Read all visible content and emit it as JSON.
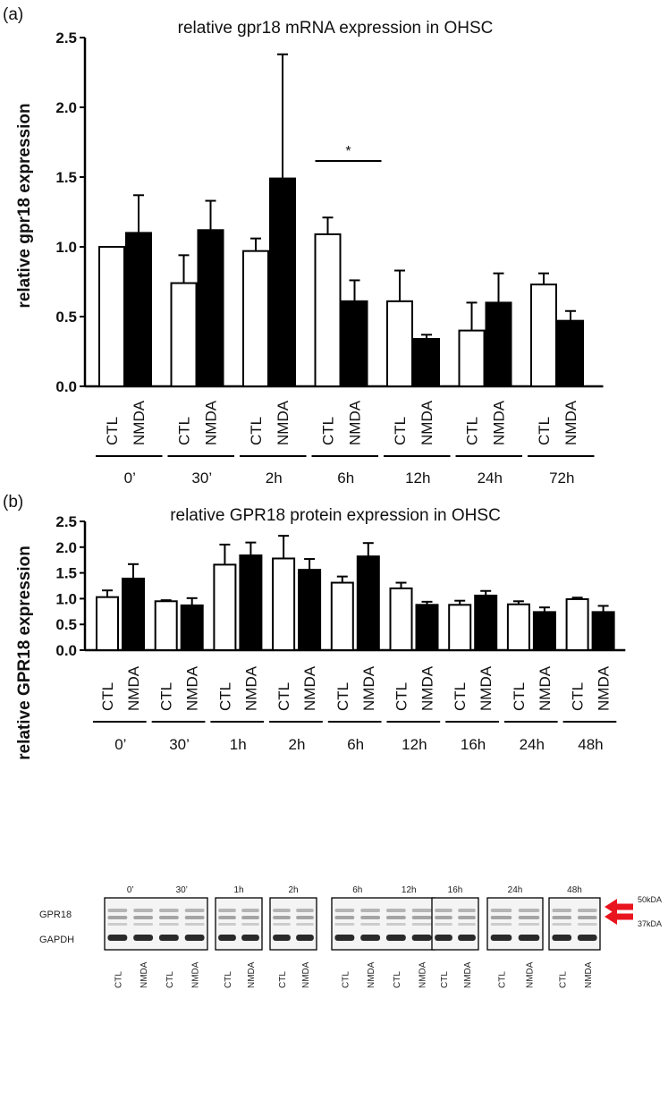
{
  "chart_data": [
    {
      "panel": "(a)",
      "type": "bar",
      "title": "relative gpr18 mRNA expression in OHSC",
      "ylabel": "relative gpr18 expression",
      "ylim": [
        0,
        2.5
      ],
      "yticks": [
        "0.0",
        "0.5",
        "1.0",
        "1.5",
        "2.0",
        "2.5"
      ],
      "groups": [
        "0’",
        "30’",
        "2h",
        "6h",
        "12h",
        "24h",
        "72h"
      ],
      "series": [
        {
          "name": "CTL",
          "color": "#ffffff",
          "values": [
            1.0,
            0.74,
            0.97,
            1.09,
            0.61,
            0.4,
            0.73
          ],
          "errors": [
            0.0,
            0.2,
            0.09,
            0.12,
            0.22,
            0.2,
            0.08
          ]
        },
        {
          "name": "NMDA",
          "color": "#000000",
          "values": [
            1.1,
            1.12,
            1.49,
            0.61,
            0.34,
            0.6,
            0.47
          ],
          "errors": [
            0.27,
            0.21,
            0.89,
            0.15,
            0.03,
            0.21,
            0.07
          ]
        }
      ],
      "significance": {
        "group_index": 3,
        "label": "*"
      }
    },
    {
      "panel": "(b)",
      "type": "bar",
      "title": "relative GPR18 protein expression in OHSC",
      "ylabel": "relative GPR18 expression",
      "ylim": [
        0,
        2.5
      ],
      "yticks": [
        "0.0",
        "0.5",
        "1.0",
        "1.5",
        "2.0",
        "2.5"
      ],
      "groups": [
        "0’",
        "30’",
        "1h",
        "2h",
        "6h",
        "12h",
        "16h",
        "24h",
        "48h"
      ],
      "series": [
        {
          "name": "CTL",
          "color": "#ffffff",
          "values": [
            1.03,
            0.95,
            1.66,
            1.78,
            1.31,
            1.2,
            0.88,
            0.89,
            0.99
          ],
          "errors": [
            0.13,
            0.02,
            0.39,
            0.44,
            0.12,
            0.11,
            0.08,
            0.06,
            0.03
          ]
        },
        {
          "name": "NMDA",
          "color": "#000000",
          "values": [
            1.39,
            0.87,
            1.84,
            1.56,
            1.82,
            0.88,
            1.06,
            0.74,
            0.74
          ],
          "errors": [
            0.28,
            0.14,
            0.25,
            0.21,
            0.26,
            0.06,
            0.09,
            0.09,
            0.12
          ]
        }
      ]
    }
  ],
  "blot": {
    "time_labels": [
      "0’",
      "30’",
      "1h",
      "2h",
      "6h",
      "12h",
      "16h",
      "24h",
      "48h"
    ],
    "row_labels": [
      "GPR18",
      "GAPDH"
    ],
    "mw_labels": [
      "50kDA",
      "37kDA"
    ],
    "arrow_color": "#e8151f",
    "lane_labels": [
      "CTL",
      "NMDA",
      "CTL",
      "NMDA",
      "CTL",
      "NMDA",
      "CTL",
      "NMDA",
      "CTL",
      "NMDA",
      "CTL",
      "NMDA",
      "CTL",
      "NMDA",
      "CTL",
      "NMDA",
      "CTL",
      "NMDA"
    ]
  }
}
